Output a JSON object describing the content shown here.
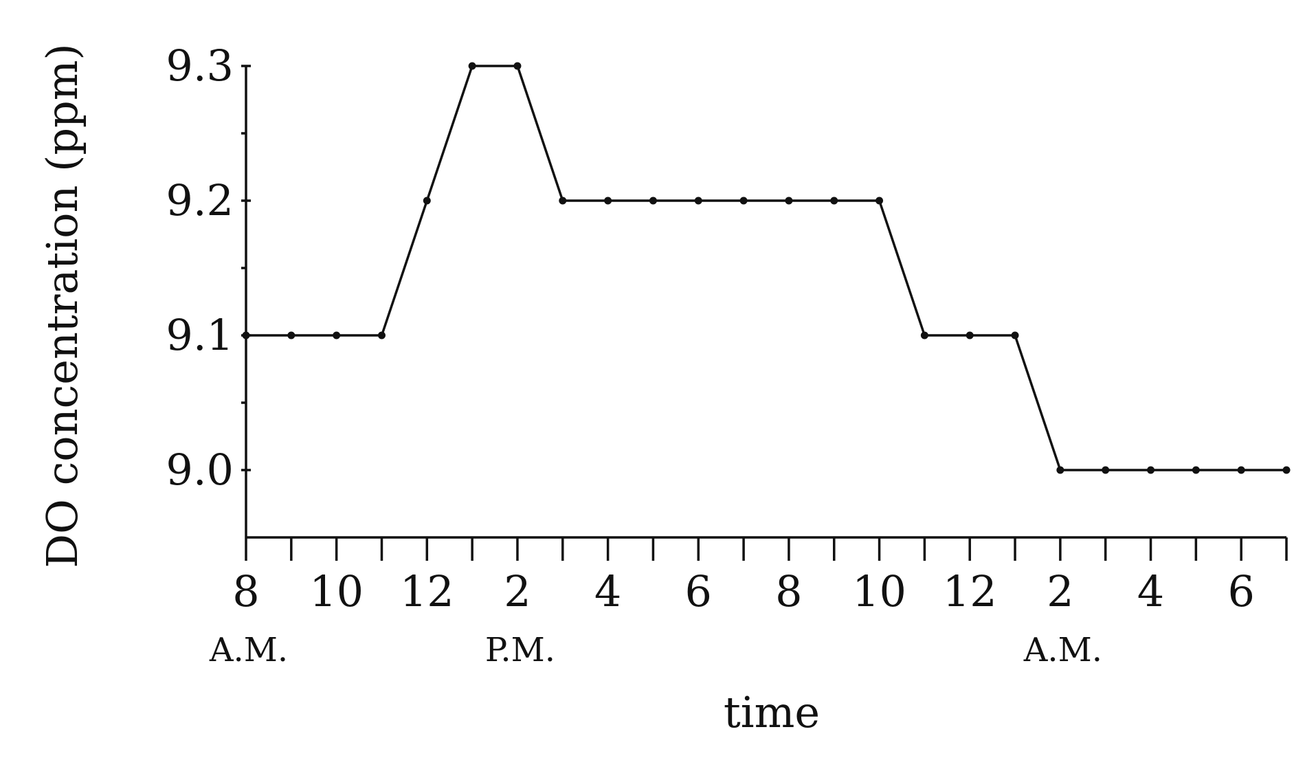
{
  "chart_data": {
    "type": "line",
    "title": "",
    "xlabel": "time",
    "ylabel": "DO concentration (ppm)",
    "ylim": [
      8.95,
      9.3
    ],
    "yticks": [
      "9.0",
      "9.1",
      "9.2",
      "9.3"
    ],
    "ytick_values": [
      9.0,
      9.1,
      9.2,
      9.3
    ],
    "y_minor_ticks": [
      9.05,
      9.15,
      9.25
    ],
    "xlim": [
      8,
      31
    ],
    "xtick_labels": [
      "8",
      "10",
      "12",
      "2",
      "4",
      "6",
      "8",
      "10",
      "12",
      "2",
      "4",
      "6"
    ],
    "xtick_hours": [
      8,
      10,
      12,
      14,
      16,
      18,
      20,
      22,
      24,
      26,
      28,
      30
    ],
    "x_minor_ticks": [
      9,
      11,
      13,
      15,
      17,
      19,
      21,
      23,
      25,
      27,
      29,
      31
    ],
    "period_labels": [
      {
        "text": "A.M.",
        "hour": 8
      },
      {
        "text": "P.M.",
        "hour": 14
      },
      {
        "text": "A.M.",
        "hour": 26
      }
    ],
    "grid": false,
    "legend": "none",
    "series": [
      {
        "x": [
          8,
          9,
          10,
          11,
          12,
          13,
          14,
          15,
          16,
          17,
          18,
          19,
          20,
          21,
          22,
          23,
          24,
          25,
          26,
          27,
          28,
          29,
          30,
          31
        ],
        "x_display": [
          "8 A.M.",
          "9 A.M.",
          "10 A.M.",
          "11 A.M.",
          "12 P.M.",
          "1 P.M.",
          "2 P.M.",
          "3 P.M.",
          "4 P.M.",
          "5 P.M.",
          "6 P.M.",
          "7 P.M.",
          "8 P.M.",
          "9 P.M.",
          "10 P.M.",
          "11 P.M.",
          "12 A.M.",
          "1 A.M.",
          "2 A.M.",
          "3 A.M.",
          "4 A.M.",
          "5 A.M.",
          "6 A.M.",
          "7 A.M."
        ],
        "values": [
          9.1,
          9.1,
          9.1,
          9.1,
          9.2,
          9.3,
          9.3,
          9.2,
          9.2,
          9.2,
          9.2,
          9.2,
          9.2,
          9.2,
          9.2,
          9.1,
          9.1,
          9.1,
          9.0,
          9.0,
          9.0,
          9.0,
          9.0,
          9.0
        ],
        "color": "#111111"
      }
    ]
  }
}
